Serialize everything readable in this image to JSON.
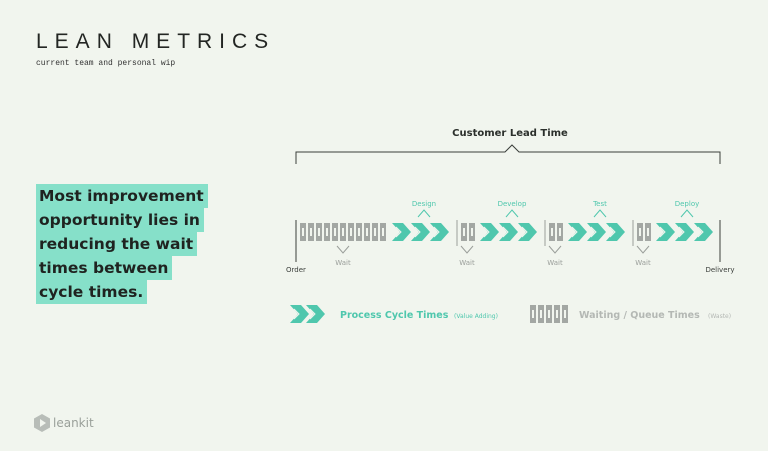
{
  "header": {
    "title": "LEAN METRICS",
    "subtitle": "current team and personal wip"
  },
  "callout": {
    "lines": [
      "Most improvement",
      "opportunity lies in",
      "reducing the wait",
      "times between",
      "cycle times."
    ]
  },
  "diagram": {
    "lead_time_label": "Customer Lead Time",
    "start_label": "Order",
    "end_label": "Delivery",
    "stages": [
      "Design",
      "Develop",
      "Test",
      "Deploy"
    ],
    "wait_label": "Wait",
    "accent_color": "#4fc7ad",
    "wait_color": "#9a9e9a"
  },
  "legend": {
    "process_label": "Process Cycle Times",
    "process_note": "(Value Adding)",
    "wait_label": "Waiting / Queue Times",
    "wait_note": "(Waste)"
  },
  "brand": {
    "name": "leankit",
    "icon": "leankit-logo-icon"
  }
}
